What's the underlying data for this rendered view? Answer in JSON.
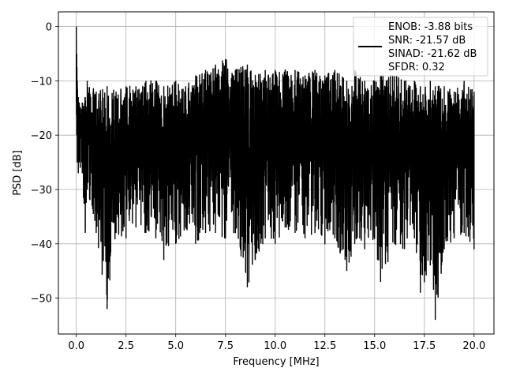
{
  "chart_data": {
    "type": "line",
    "title": "",
    "xlabel": "Frequency [MHz]",
    "ylabel": "PSD [dB]",
    "xlim": [
      -0.9,
      21.0
    ],
    "ylim": [
      -56.6,
      2.7
    ],
    "xticks": [
      0.0,
      2.5,
      5.0,
      7.5,
      10.0,
      12.5,
      15.0,
      17.5,
      20.0
    ],
    "xtick_labels": [
      "0.0",
      "2.5",
      "5.0",
      "7.5",
      "10.0",
      "12.5",
      "15.0",
      "17.5",
      "20.0"
    ],
    "yticks": [
      0,
      -10,
      -20,
      -30,
      -40,
      -50
    ],
    "ytick_labels": [
      "0",
      "−10",
      "−20",
      "−30",
      "−40",
      "−50"
    ],
    "grid": true,
    "legend_position": "upper right",
    "legend_lines": [
      "ENOB: -3.88 bits",
      "SNR: -21.57 dB",
      "SINAD: -21.62 dB",
      "SFDR: 0.32"
    ],
    "series": [
      {
        "color": "#000000",
        "style": "noise-floor envelope (approximate)",
        "x": [
          0.0,
          0.02,
          0.05,
          0.1,
          0.15,
          0.2,
          0.3,
          0.45,
          0.55,
          1.0,
          1.55,
          2.0,
          2.5,
          3.0,
          3.5,
          4.0,
          4.4,
          5.0,
          5.5,
          6.0,
          6.5,
          7.0,
          7.5,
          8.0,
          8.6,
          9.0,
          9.5,
          10.0,
          10.5,
          11.0,
          11.5,
          12.0,
          12.5,
          13.0,
          13.6,
          14.0,
          14.5,
          15.0,
          15.3,
          16.0,
          16.5,
          17.0,
          17.3,
          17.8,
          18.05,
          18.5,
          19.0,
          19.5,
          20.0
        ],
        "upper": [
          0,
          -5,
          -10,
          -13,
          -14,
          -15,
          -14,
          -13,
          -10,
          -12,
          -11,
          -12,
          -11,
          -11,
          -10,
          -10,
          -11,
          -10,
          -11,
          -9,
          -8,
          -7,
          -6,
          -8,
          -7,
          -9,
          -8,
          -8,
          -8,
          -8,
          -9,
          -8,
          -9,
          -8,
          -10,
          -8,
          -10,
          -10,
          -9,
          -9,
          -10,
          -10,
          -11,
          -10,
          -11,
          -11,
          -12,
          -10,
          -12
        ],
        "lower": [
          -14,
          -20,
          -25,
          -27,
          -25,
          -26,
          -27,
          -38,
          -30,
          -38,
          -52,
          -38,
          -39,
          -37,
          -38,
          -39,
          -43,
          -40,
          -37,
          -40,
          -38,
          -38,
          -39,
          -38,
          -48,
          -43,
          -39,
          -40,
          -37,
          -38,
          -39,
          -38,
          -40,
          -39,
          -45,
          -40,
          -41,
          -39,
          -47,
          -40,
          -41,
          -39,
          -49,
          -44,
          -54,
          -41,
          -39,
          -38,
          -41
        ]
      }
    ]
  }
}
